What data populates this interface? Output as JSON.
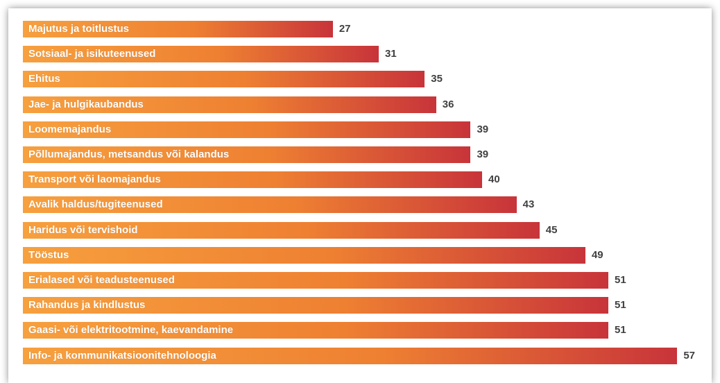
{
  "chart_data": {
    "type": "bar",
    "orientation": "horizontal",
    "categories": [
      "Majutus ja toitlustus",
      "Sotsiaal- ja isikuteenused",
      "Ehitus",
      "Jae- ja hulgikaubandus",
      "Loomemajandus",
      "Põllumajandus, metsandus või kalandus",
      "Transport või laomajandus",
      "Avalik haldus/tugiteenused",
      "Haridus või tervishoid",
      "Tööstus",
      "Erialased või teadusteenused",
      "Rahandus ja kindlustus",
      "Gaasi- või elektritootmine, kaevandamine",
      "Info- ja kommunikatsioonitehnoloogia"
    ],
    "values": [
      27,
      31,
      35,
      36,
      39,
      39,
      40,
      43,
      45,
      49,
      51,
      51,
      51,
      57
    ],
    "data_labels": [
      "27",
      "31",
      "35",
      "36",
      "39",
      "39",
      "40",
      "43",
      "45",
      "49",
      "51",
      "51",
      "51",
      "57"
    ],
    "colors": {
      "bar_start": "#F7A03E",
      "bar_mid": "#EE8032",
      "bar_end": "#C8343A",
      "value_text": "#404040",
      "label_text": "#FFFFFF"
    },
    "xlim": [
      0,
      57
    ],
    "grid": false,
    "legend": "none"
  }
}
